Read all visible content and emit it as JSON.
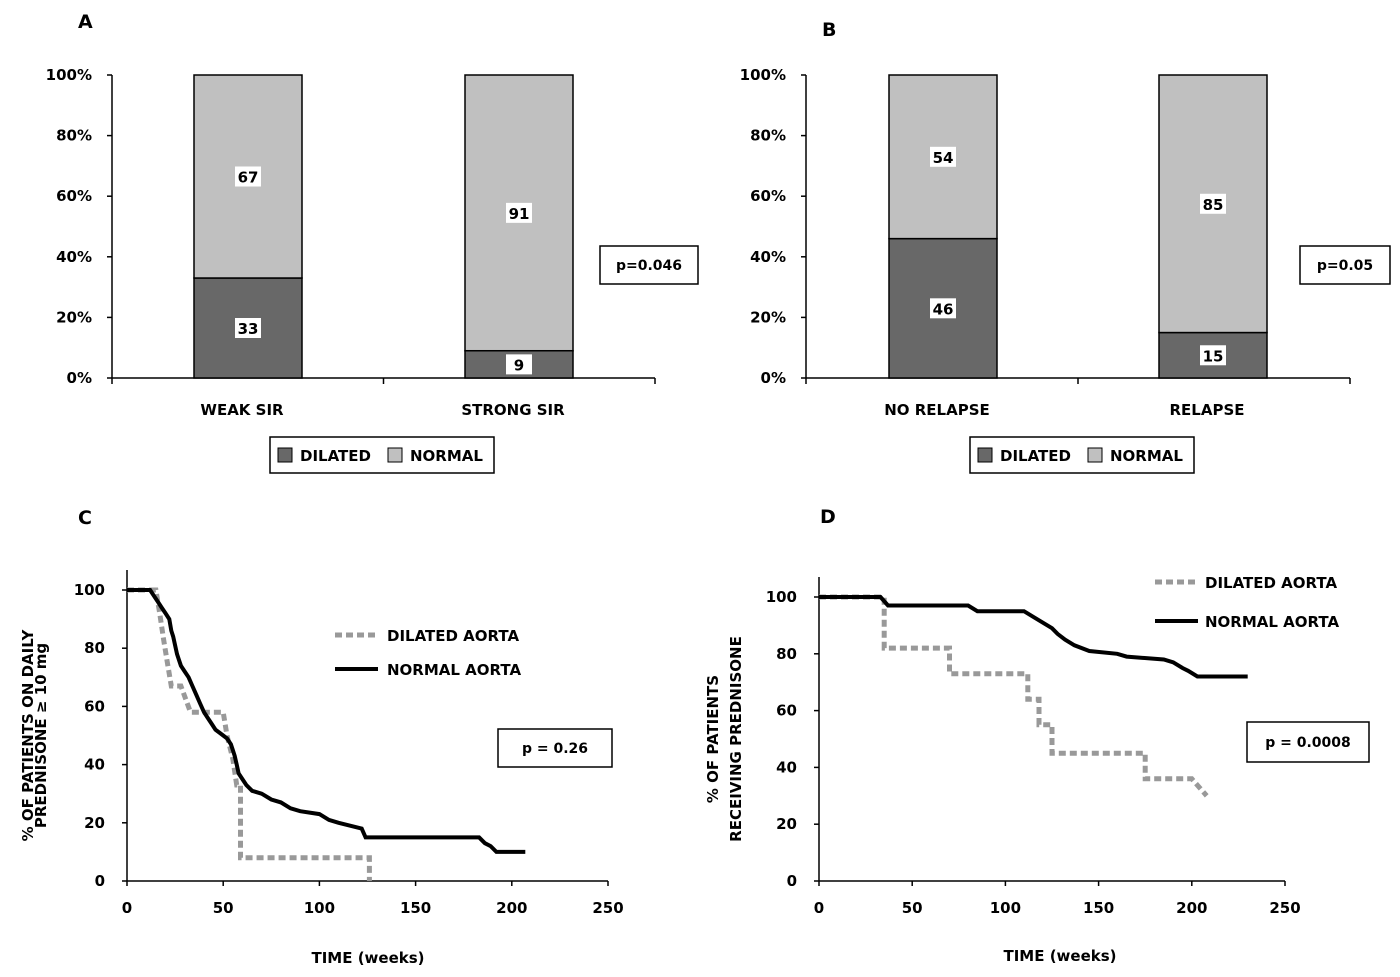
{
  "chart_data": [
    {
      "panel": "A",
      "type": "bar",
      "stacked": true,
      "categories": [
        "WEAK SIR",
        "STRONG  SIR"
      ],
      "series": [
        {
          "name": "DILATED",
          "values": [
            33,
            9
          ],
          "color": "#686868"
        },
        {
          "name": "NORMAL",
          "values": [
            67,
            91
          ],
          "color": "#c0c0c0"
        }
      ],
      "yticks": [
        "0%",
        "20%",
        "40%",
        "60%",
        "80%",
        "100%"
      ],
      "ylim": [
        0,
        100
      ],
      "annotation": "p=0.046",
      "legend_position": "bottom"
    },
    {
      "panel": "B",
      "type": "bar",
      "stacked": true,
      "categories": [
        "NO RELAPSE",
        "RELAPSE"
      ],
      "series": [
        {
          "name": "DILATED",
          "values": [
            46,
            15
          ],
          "color": "#686868"
        },
        {
          "name": "NORMAL",
          "values": [
            54,
            85
          ],
          "color": "#c0c0c0"
        }
      ],
      "yticks": [
        "0%",
        "20%",
        "40%",
        "60%",
        "80%",
        "100%"
      ],
      "ylim": [
        0,
        100
      ],
      "annotation": "p=0.05",
      "legend_position": "bottom"
    },
    {
      "panel": "C",
      "type": "line",
      "step": true,
      "xlabel": "TIME (weeks)",
      "ylabel_lines": [
        "% OF PATIENTS ON DAILY",
        "PREDNISONE ≥ 10 mg"
      ],
      "xlim": [
        0,
        250
      ],
      "ylim": [
        0,
        100
      ],
      "xticks": [
        0,
        50,
        100,
        150,
        200,
        250
      ],
      "yticks": [
        0,
        20,
        40,
        60,
        80,
        100
      ],
      "annotation": "p = 0.26",
      "legend_position": "top-right",
      "series": [
        {
          "name": "DILATED AORTA",
          "style": "dashed",
          "color": "#999999",
          "points": [
            [
              0,
              100
            ],
            [
              15,
              100
            ],
            [
              17,
              92
            ],
            [
              19,
              83
            ],
            [
              21,
              75
            ],
            [
              23,
              67
            ],
            [
              28,
              67
            ],
            [
              33,
              58
            ],
            [
              50,
              58
            ],
            [
              52,
              50
            ],
            [
              55,
              42
            ],
            [
              57,
              33
            ],
            [
              59,
              33
            ],
            [
              59,
              8
            ],
            [
              126,
              8
            ],
            [
              126,
              0
            ]
          ]
        },
        {
          "name": "NORMAL AORTA",
          "style": "solid",
          "color": "#000000",
          "points": [
            [
              0,
              100
            ],
            [
              12,
              100
            ],
            [
              14,
              98
            ],
            [
              16,
              96
            ],
            [
              18,
              94
            ],
            [
              20,
              92
            ],
            [
              22,
              90
            ],
            [
              23,
              86
            ],
            [
              24,
              84
            ],
            [
              25,
              81
            ],
            [
              26,
              78
            ],
            [
              27,
              76
            ],
            [
              28,
              74
            ],
            [
              30,
              72
            ],
            [
              32,
              70
            ],
            [
              34,
              67
            ],
            [
              36,
              64
            ],
            [
              38,
              61
            ],
            [
              40,
              58
            ],
            [
              42,
              56
            ],
            [
              44,
              54
            ],
            [
              46,
              52
            ],
            [
              48,
              51
            ],
            [
              50,
              50
            ],
            [
              52,
              49
            ],
            [
              54,
              47
            ],
            [
              55,
              45
            ],
            [
              56,
              43
            ],
            [
              57,
              40
            ],
            [
              58,
              37
            ],
            [
              60,
              35
            ],
            [
              62,
              33
            ],
            [
              65,
              31
            ],
            [
              70,
              30
            ],
            [
              75,
              28
            ],
            [
              80,
              27
            ],
            [
              85,
              25
            ],
            [
              90,
              24
            ],
            [
              100,
              23
            ],
            [
              105,
              21
            ],
            [
              110,
              20
            ],
            [
              122,
              18
            ],
            [
              124,
              15
            ],
            [
              150,
              15
            ],
            [
              183,
              15
            ],
            [
              186,
              13
            ],
            [
              189,
              12
            ],
            [
              192,
              10
            ],
            [
              207,
              10
            ]
          ]
        }
      ]
    },
    {
      "panel": "D",
      "type": "line",
      "step": true,
      "xlabel": "TIME (weeks)",
      "ylabel_lines": [
        "% OF PATIENTS",
        "RECEIVING PREDNISONE"
      ],
      "xlim": [
        0,
        250
      ],
      "ylim": [
        0,
        100
      ],
      "xticks": [
        0,
        50,
        100,
        150,
        200,
        250
      ],
      "yticks": [
        0,
        20,
        40,
        60,
        80,
        100
      ],
      "annotation": "p = 0.0008",
      "legend_position": "top-right",
      "series": [
        {
          "name": "DILATED AORTA",
          "style": "dashed",
          "color": "#999999",
          "points": [
            [
              0,
              100
            ],
            [
              35,
              100
            ],
            [
              35,
              82
            ],
            [
              70,
              82
            ],
            [
              70,
              73
            ],
            [
              112,
              73
            ],
            [
              112,
              64
            ],
            [
              118,
              64
            ],
            [
              118,
              55
            ],
            [
              125,
              55
            ],
            [
              125,
              45
            ],
            [
              175,
              45
            ],
            [
              175,
              36
            ],
            [
              200,
              36
            ],
            [
              208,
              30
            ]
          ]
        },
        {
          "name": "NORMAL AORTA",
          "style": "solid",
          "color": "#000000",
          "points": [
            [
              0,
              100
            ],
            [
              33,
              100
            ],
            [
              37,
              97
            ],
            [
              80,
              97
            ],
            [
              85,
              95
            ],
            [
              110,
              95
            ],
            [
              115,
              93
            ],
            [
              120,
              91
            ],
            [
              125,
              89
            ],
            [
              128,
              87
            ],
            [
              132,
              85
            ],
            [
              137,
              83
            ],
            [
              145,
              81
            ],
            [
              160,
              80
            ],
            [
              165,
              79
            ],
            [
              185,
              78
            ],
            [
              190,
              77
            ],
            [
              195,
              75
            ],
            [
              198,
              74
            ],
            [
              203,
              72
            ],
            [
              230,
              72
            ]
          ]
        }
      ]
    }
  ]
}
